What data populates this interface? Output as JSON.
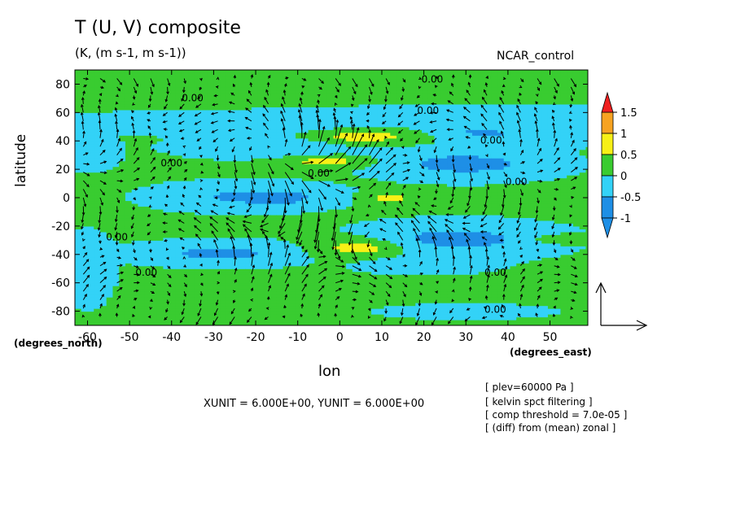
{
  "chart_data": {
    "type": "heatmap",
    "title": "T (U, V) composite",
    "subtitle": "(K, (m s-1, m s-1))",
    "run_label": "NCAR_control",
    "xlabel": "lon",
    "ylabel": "latitude",
    "x_unit_label": "(degrees_east)",
    "y_unit_label": "(degrees_north)",
    "xlim": [
      -63,
      59
    ],
    "ylim": [
      -90,
      90
    ],
    "x_ticks": [
      -60,
      -50,
      -40,
      -30,
      -20,
      -10,
      0,
      10,
      20,
      30,
      40,
      50
    ],
    "y_ticks": [
      -80,
      -60,
      -40,
      -20,
      0,
      20,
      40,
      60,
      80
    ],
    "contour_label": "0.00",
    "colorbar": {
      "levels": [
        -1,
        -0.5,
        0,
        0.5,
        1,
        1.5
      ],
      "tick_labels": [
        "-1",
        "-0.5",
        "0",
        "0.5",
        "1",
        "1.5"
      ],
      "colors": [
        "#1e8fe6",
        "#33d2f7",
        "#39cc30",
        "#f7f016",
        "#f7a321",
        "#f02020"
      ]
    },
    "vector_unit_text": "XUNIT = 6.000E+00, YUNIT = 6.000E+00",
    "notes": [
      "[ plev=60000 Pa ]",
      "[ kelvin spct filtering ]",
      "[ comp threshold = 7.0e-05 ]",
      "[ (diff) from (mean) zonal ]"
    ],
    "anomaly_regions": [
      {
        "sign": "positive",
        "center": [
          5,
          43
        ],
        "value": 0.7
      },
      {
        "sign": "positive",
        "center": [
          -3,
          26
        ],
        "value": 0.6
      },
      {
        "sign": "positive",
        "center": [
          12,
          0
        ],
        "value": 0.6
      },
      {
        "sign": "positive",
        "center": [
          5,
          -35
        ],
        "value": 0.7
      },
      {
        "sign": "positive",
        "center": [
          52,
          -29
        ],
        "value": 0.55
      },
      {
        "sign": "negative",
        "center": [
          -13,
          0
        ],
        "value": -0.7
      },
      {
        "sign": "negative",
        "center": [
          -28,
          -39
        ],
        "value": -0.7
      },
      {
        "sign": "negative",
        "center": [
          30,
          25
        ],
        "value": -0.75
      },
      {
        "sign": "negative",
        "center": [
          30,
          -28
        ],
        "value": -0.75
      },
      {
        "sign": "negative",
        "center": [
          33,
          46
        ],
        "value": -0.6
      }
    ]
  }
}
